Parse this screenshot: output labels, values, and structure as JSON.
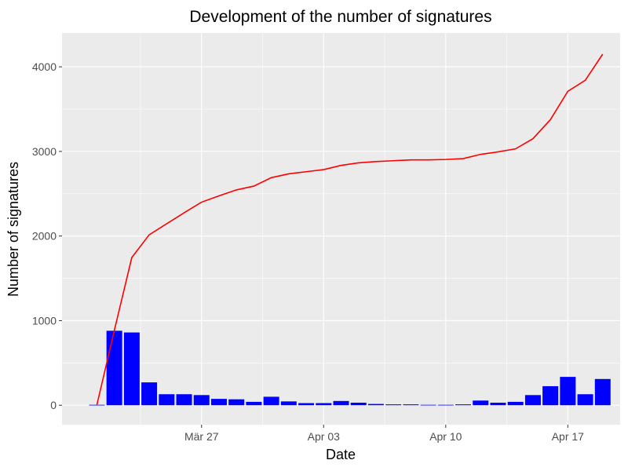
{
  "chart_data": {
    "type": "bar+line",
    "title": "Development of the number of signatures",
    "xlabel": "Date",
    "ylabel": "Number of signatures",
    "x_ticks": [
      {
        "date": "2021-03-27",
        "label": "Mär 27"
      },
      {
        "date": "2021-04-03",
        "label": "Apr 03"
      },
      {
        "date": "2021-04-10",
        "label": "Apr 10"
      },
      {
        "date": "2021-04-17",
        "label": "Apr 17"
      }
    ],
    "y_ticks": [
      0,
      1000,
      2000,
      3000,
      4000
    ],
    "xlim": [
      "2021-03-19",
      "2021-04-20"
    ],
    "ylim": [
      -230,
      4400
    ],
    "grid": true,
    "legend": "none",
    "series": [
      {
        "type": "bar",
        "color": "#0000ff",
        "x": [
          "2021-03-21",
          "2021-03-22",
          "2021-03-23",
          "2021-03-24",
          "2021-03-25",
          "2021-03-26",
          "2021-03-27",
          "2021-03-28",
          "2021-03-29",
          "2021-03-30",
          "2021-03-31",
          "2021-04-01",
          "2021-04-02",
          "2021-04-03",
          "2021-04-04",
          "2021-04-05",
          "2021-04-06",
          "2021-04-07",
          "2021-04-08",
          "2021-04-09",
          "2021-04-10",
          "2021-04-11",
          "2021-04-12",
          "2021-04-13",
          "2021-04-14",
          "2021-04-15",
          "2021-04-16",
          "2021-04-17",
          "2021-04-18",
          "2021-04-19"
        ],
        "values": [
          5,
          880,
          860,
          270,
          130,
          130,
          120,
          75,
          70,
          40,
          100,
          45,
          25,
          25,
          50,
          30,
          15,
          10,
          10,
          5,
          5,
          10,
          55,
          30,
          40,
          120,
          225,
          335,
          130,
          310
        ]
      },
      {
        "type": "line",
        "color": "#ff0000",
        "x": [
          "2021-03-21",
          "2021-03-22",
          "2021-03-23",
          "2021-03-24",
          "2021-03-25",
          "2021-03-26",
          "2021-03-27",
          "2021-03-28",
          "2021-03-29",
          "2021-03-30",
          "2021-03-31",
          "2021-04-01",
          "2021-04-02",
          "2021-04-03",
          "2021-04-04",
          "2021-04-05",
          "2021-04-06",
          "2021-04-07",
          "2021-04-08",
          "2021-04-09",
          "2021-04-10",
          "2021-04-11",
          "2021-04-12",
          "2021-04-13",
          "2021-04-14",
          "2021-04-15",
          "2021-04-16",
          "2021-04-17",
          "2021-04-18",
          "2021-04-19"
        ],
        "values": [
          5,
          885,
          1745,
          2015,
          2145,
          2275,
          2400,
          2475,
          2545,
          2590,
          2690,
          2735,
          2760,
          2785,
          2835,
          2865,
          2880,
          2890,
          2900,
          2900,
          2905,
          2915,
          2965,
          2995,
          3030,
          3150,
          3375,
          3710,
          3840,
          4150
        ]
      }
    ]
  }
}
